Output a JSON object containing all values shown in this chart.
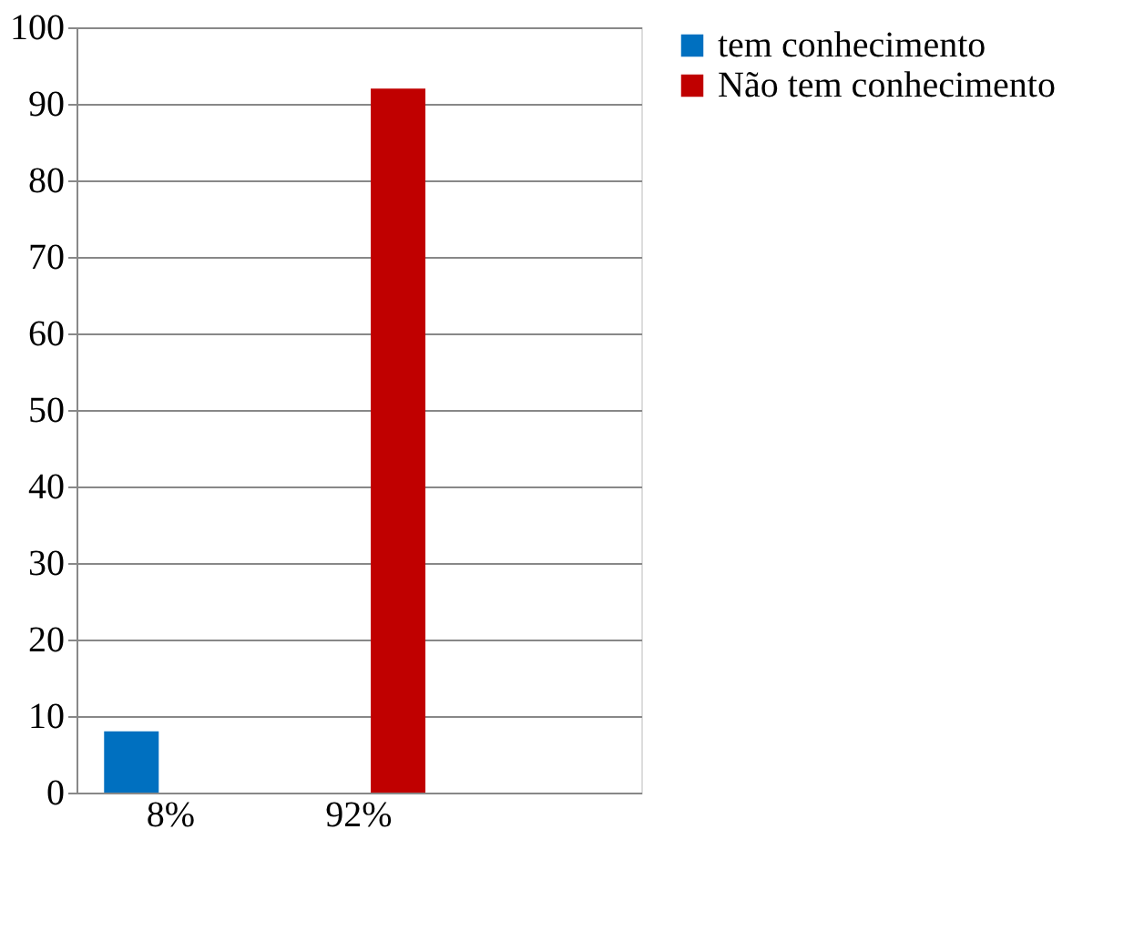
{
  "chart_data": {
    "type": "bar",
    "categories": [
      "8%",
      "92%",
      null
    ],
    "series": [
      {
        "name": "tem conhecimento",
        "color": "#0070c0",
        "values": [
          8,
          null,
          null
        ]
      },
      {
        "name": "Não tem conhecimento",
        "color": "#c00000",
        "values": [
          null,
          92,
          null
        ]
      }
    ],
    "ylim": [
      0,
      100
    ],
    "yticks": [
      0,
      10,
      20,
      30,
      40,
      50,
      60,
      70,
      80,
      90,
      100
    ],
    "grid": "y",
    "legend": "right"
  }
}
